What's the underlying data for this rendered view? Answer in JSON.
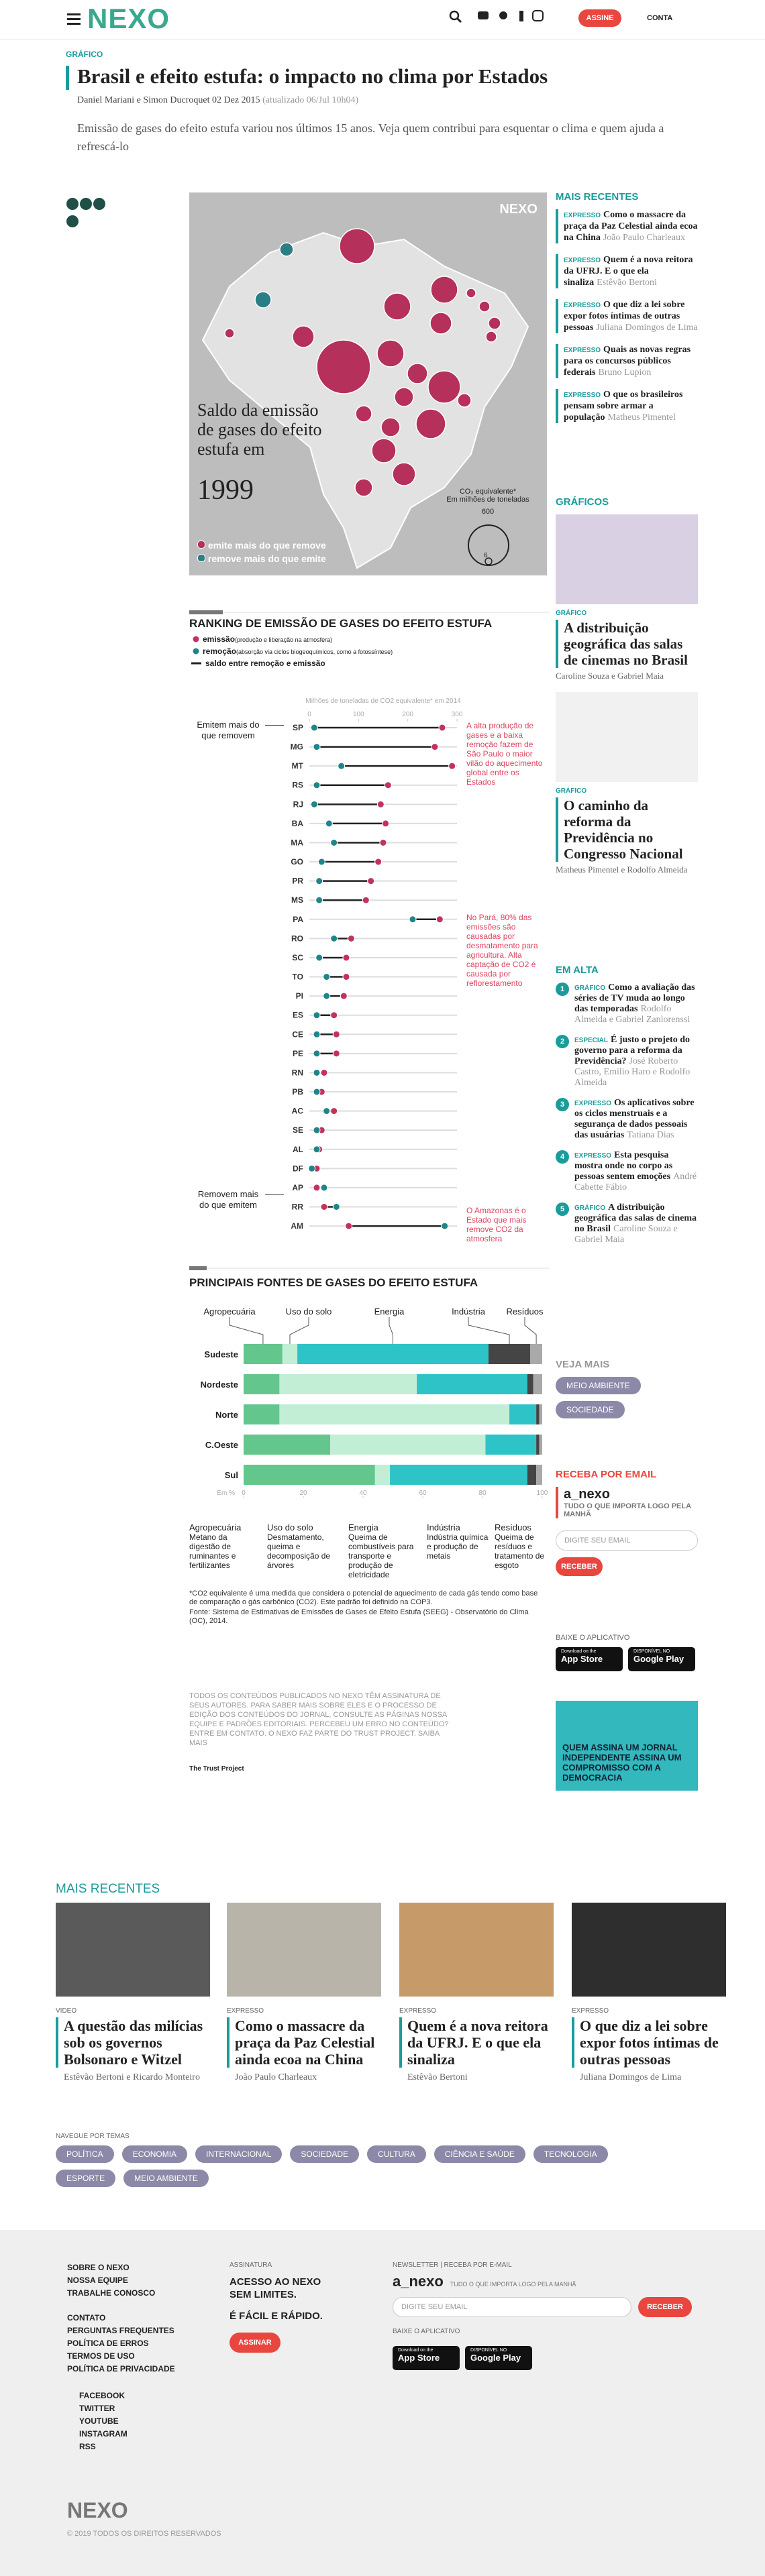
{
  "header": {
    "logo": "NEXO",
    "subscribe": "ASSINE",
    "account": "CONTA"
  },
  "article": {
    "kicker": "GRÁFICO",
    "title": "Brasil e efeito estufa: o impacto no clima por Estados",
    "authors": "Daniel Mariani e Simon Ducroquet",
    "date": "02 Dez 2015",
    "updated": "(atualizado 06/Jul 10h04)",
    "lead": "Emissão de gases do efeito estufa variou nos últimos 15 anos. Veja quem contribui para esquentar o clima e quem ajuda a refrescá-lo"
  },
  "map": {
    "brand": "NEXO",
    "title": "Saldo da emissão de gases do efeito estufa em",
    "year": "1999",
    "scale_title": "CO₂ equivalente*",
    "scale_unit": "Em milhões de toneladas",
    "scale_max": 600,
    "scale_min": 6,
    "legend": [
      "emite mais do que remove",
      "remove mais do que emite"
    ]
  },
  "chart_data": [
    {
      "type": "dumbbell",
      "title": "RANKING DE EMISSÃO DE GASES DO EFEITO ESTUFA",
      "x_label": "Milhões de toneladas de CO2 equivalente* em 2014",
      "balance_label": "saldo entre remoção e emissão",
      "categories": [
        "SP",
        "MG",
        "MT",
        "RS",
        "RJ",
        "BA",
        "MA",
        "GO",
        "PR",
        "MS",
        "PA",
        "RO",
        "SC",
        "TO",
        "PI",
        "ES",
        "CE",
        "PE",
        "RN",
        "PB",
        "AC",
        "SE",
        "AL",
        "DF",
        "AP",
        "RR",
        "AM"
      ],
      "series": [
        {
          "name": "emissão",
          "description": "(produção e liberação na atmosfera)",
          "color": "#c2325c",
          "values": [
            270,
            255,
            290,
            160,
            145,
            155,
            150,
            140,
            125,
            115,
            265,
            85,
            75,
            75,
            70,
            50,
            55,
            55,
            30,
            25,
            50,
            25,
            20,
            15,
            15,
            30,
            80
          ]
        },
        {
          "name": "remoção",
          "description": "(absorção via ciclos biogeoquímicos, como a fotossíntese)",
          "color": "#1f8588",
          "values": [
            10,
            15,
            65,
            15,
            10,
            40,
            50,
            25,
            20,
            20,
            210,
            50,
            20,
            35,
            35,
            15,
            15,
            15,
            15,
            15,
            35,
            15,
            15,
            5,
            30,
            55,
            275
          ]
        }
      ],
      "balance_color": "#222222",
      "xlim": [
        0,
        300
      ],
      "xticks": [
        0,
        100,
        200,
        300
      ],
      "groups": [
        "Emitem mais do que removem",
        "Removem mais do que emitem"
      ],
      "annotations": [
        "A alta produção de gases e a baixa remoção fazem de São Paulo o maior vilão do aquecimento global entre os Estados",
        "No Pará, 80% das emissões são causadas por desmatamento para agricultura. Alta captação de CO2 é causada por reflorestamento",
        "O Amazonas é o Estado que mais remove CO2 da atmosfera"
      ]
    },
    {
      "type": "stacked_bar_horizontal",
      "title": "PRINCIPAIS FONTES DE GASES DO EFEITO ESTUFA",
      "x_label": "Em %",
      "categories": [
        "Sudeste",
        "Nordeste",
        "Norte",
        "C.Oeste",
        "Sul"
      ],
      "series": [
        {
          "name": "Agropecuária",
          "description": "Metano da digestão de ruminantes e fertilizantes",
          "color": "#63c68c",
          "values": [
            13,
            12,
            12,
            29,
            44
          ]
        },
        {
          "name": "Uso do solo",
          "description": "Desmatamento, queima e decomposição de árvores",
          "color": "#c2eed6",
          "values": [
            5,
            46,
            77,
            52,
            5
          ]
        },
        {
          "name": "Energia",
          "description": "Queima de combustíveis para transporte e produção de eletricidade",
          "color": "#2ec3c6",
          "values": [
            64,
            37,
            9,
            17,
            46
          ]
        },
        {
          "name": "Indústria",
          "description": "Indústria química e produção de metais",
          "color": "#454545",
          "values": [
            14,
            2,
            1,
            1,
            3
          ]
        },
        {
          "name": "Resíduos",
          "description": "Queima de resíduos e tratamento de esgoto",
          "color": "#a9a9a9",
          "values": [
            4,
            3,
            1,
            1,
            2
          ]
        }
      ],
      "xlim": [
        0,
        100
      ],
      "xticks": [
        0,
        20,
        40,
        60,
        80,
        100
      ]
    }
  ],
  "footnotes": [
    "*CO2 equivalente é uma medida que considera o potencial de aquecimento de cada gás tendo como base de comparação o gás carbônico (CO2). Este padrão foi definido na COP3.",
    "Fonte: Sistema de Estimativas de Emissões de Gases de Efeito Estufa (SEEG) - Observatório do Clima (OC), 2014."
  ],
  "legal": {
    "text": "TODOS OS CONTEÚDOS PUBLICADOS NO NEXO TÊM ASSINATURA DE SEUS AUTORES. PARA SABER MAIS SOBRE ELES E O PROCESSO DE EDIÇÃO DOS CONTEÚDOS DO JORNAL, CONSULTE AS PÁGINAS NOSSA EQUIPE E PADRÕES EDITORIAIS. PERCEBEU UM ERRO NO CONTEÚDO? ENTRE EM CONTATO. O NEXO FAZ PARTE DO TRUST PROJECT. SAIBA MAIS",
    "trust": "The Trust Project"
  },
  "sidebar": {
    "recent_title": "MAIS RECENTES",
    "recent": [
      {
        "kicker": "EXPRESSO",
        "headline": "Como o massacre da praça da Paz Celestial ainda ecoa na China",
        "author": "João Paulo Charleaux"
      },
      {
        "kicker": "EXPRESSO",
        "headline": "Quem é a nova reitora da UFRJ. E o que ela sinaliza",
        "author": "Estêvão Bertoni"
      },
      {
        "kicker": "EXPRESSO",
        "headline": "O que diz a lei sobre expor fotos íntimas de outras pessoas",
        "author": "Juliana Domingos de Lima"
      },
      {
        "kicker": "EXPRESSO",
        "headline": "Quais as novas regras para os concursos públicos federais",
        "author": "Bruno Lupion"
      },
      {
        "kicker": "EXPRESSO",
        "headline": "O que os brasileiros pensam sobre armar a população",
        "author": "Matheus Pimentel"
      }
    ],
    "charts_title": "GRÁFICOS",
    "charts": [
      {
        "kicker": "GRÁFICO",
        "headline": "A distribuição geográfica das salas de cinemas no Brasil",
        "author": "Caroline Souza e Gabriel Maia"
      },
      {
        "kicker": "GRÁFICO",
        "headline": "O caminho da reforma da Previdência no Congresso Nacional",
        "author": "Matheus Pimentel e Rodolfo Almeida"
      }
    ],
    "trending_title": "EM ALTA",
    "trending": [
      {
        "rank": 1,
        "kicker": "GRÁFICO",
        "headline": "Como a avaliação das séries de TV muda ao longo das temporadas",
        "author": "Rodolfo Almeida e Gabriel Zanlorenssi"
      },
      {
        "rank": 2,
        "kicker": "ESPECIAL",
        "headline": "É justo o projeto do governo para a reforma da Previdência?",
        "author": "José Roberto Castro, Emilio Haro e Rodolfo Almeida"
      },
      {
        "rank": 3,
        "kicker": "EXPRESSO",
        "headline": "Os aplicativos sobre os ciclos menstruais e a segurança de dados pessoais das usuárias",
        "author": "Tatiana Dias"
      },
      {
        "rank": 4,
        "kicker": "EXPRESSO",
        "headline": "Esta pesquisa mostra onde no corpo as pessoas sentem emoções",
        "author": "André Cabette Fábio"
      },
      {
        "rank": 5,
        "kicker": "GRÁFICO",
        "headline": "A distribuição geográfica das salas de cinema no Brasil",
        "author": "Caroline Souza e Gabriel Maia"
      }
    ],
    "more_title": "VEJA MAIS",
    "more": [
      "MEIO AMBIENTE",
      "SOCIEDADE"
    ],
    "email_title": "RECEBA POR EMAIL",
    "newsletter": "a_nexo",
    "newsletter_tagline": "TUDO O QUE IMPORTA LOGO PELA MANHÃ",
    "email_placeholder": "DIGITE SEU EMAIL",
    "email_button": "RECEBER",
    "app_title": "BAIXE O APLICATIVO",
    "ad": "QUEM ASSINA UM JORNAL INDEPENDENTE ASSINA UM COMPROMISSO COM A DEMOCRACIA"
  },
  "app_badges": [
    {
      "small": "Download on the",
      "big": "App Store"
    },
    {
      "small": "DISPONÍVEL NO",
      "big": "Google Play"
    }
  ],
  "bottom": {
    "title": "MAIS RECENTES",
    "cards": [
      {
        "kicker": "VIDEO",
        "headline": "A questão das milícias sob os governos Bolsonaro e Witzel",
        "author": "Estêvão Bertoni e Ricardo Monteiro"
      },
      {
        "kicker": "EXPRESSO",
        "headline": "Como o massacre da praça da Paz Celestial ainda ecoa na China",
        "author": "João Paulo Charleaux"
      },
      {
        "kicker": "EXPRESSO",
        "headline": "Quem é a nova reitora da UFRJ. E o que ela sinaliza",
        "author": "Estêvão Bertoni"
      },
      {
        "kicker": "EXPRESSO",
        "headline": "O que diz a lei sobre expor fotos íntimas de outras pessoas",
        "author": "Juliana Domingos de Lima"
      }
    ],
    "themes_title": "NAVEGUE POR TEMAS",
    "themes": [
      "POLÍTICA",
      "ECONOMIA",
      "INTERNACIONAL",
      "SOCIEDADE",
      "CULTURA",
      "CIÊNCIA E SAÚDE",
      "TECNOLOGIA",
      "ESPORTE",
      "MEIO AMBIENTE"
    ]
  },
  "footer": {
    "links_a": [
      "SOBRE O NEXO",
      "NOSSA EQUIPE",
      "TRABALHE CONOSCO"
    ],
    "links_b": [
      "CONTATO",
      "PERGUNTAS FREQUENTES",
      "POLÍTICA DE ERROS",
      "TERMOS DE USO",
      "POLÍTICA DE PRIVACIDADE"
    ],
    "social": [
      "FACEBOOK",
      "TWITTER",
      "YOUTUBE",
      "INSTAGRAM",
      "RSS"
    ],
    "sub_label": "ASSINATURA",
    "sub_text": "ACESSO AO NEXO SEM LIMITES.",
    "sub_text2": "É FÁCIL E RÁPIDO.",
    "sub_button": "ASSINAR",
    "news_label": "NEWSLETTER | RECEBA POR E-MAIL",
    "newsletter": "a_nexo",
    "news_tagline": "TUDO O QUE IMPORTA LOGO PELA MANHÃ",
    "email_placeholder": "DIGITE SEU EMAIL",
    "email_button": "RECEBER",
    "app_label": "BAIXE O APLICATIVO",
    "logo": "NEXO",
    "copyright": "© 2019 TODOS OS DIREITOS RESERVADOS"
  }
}
